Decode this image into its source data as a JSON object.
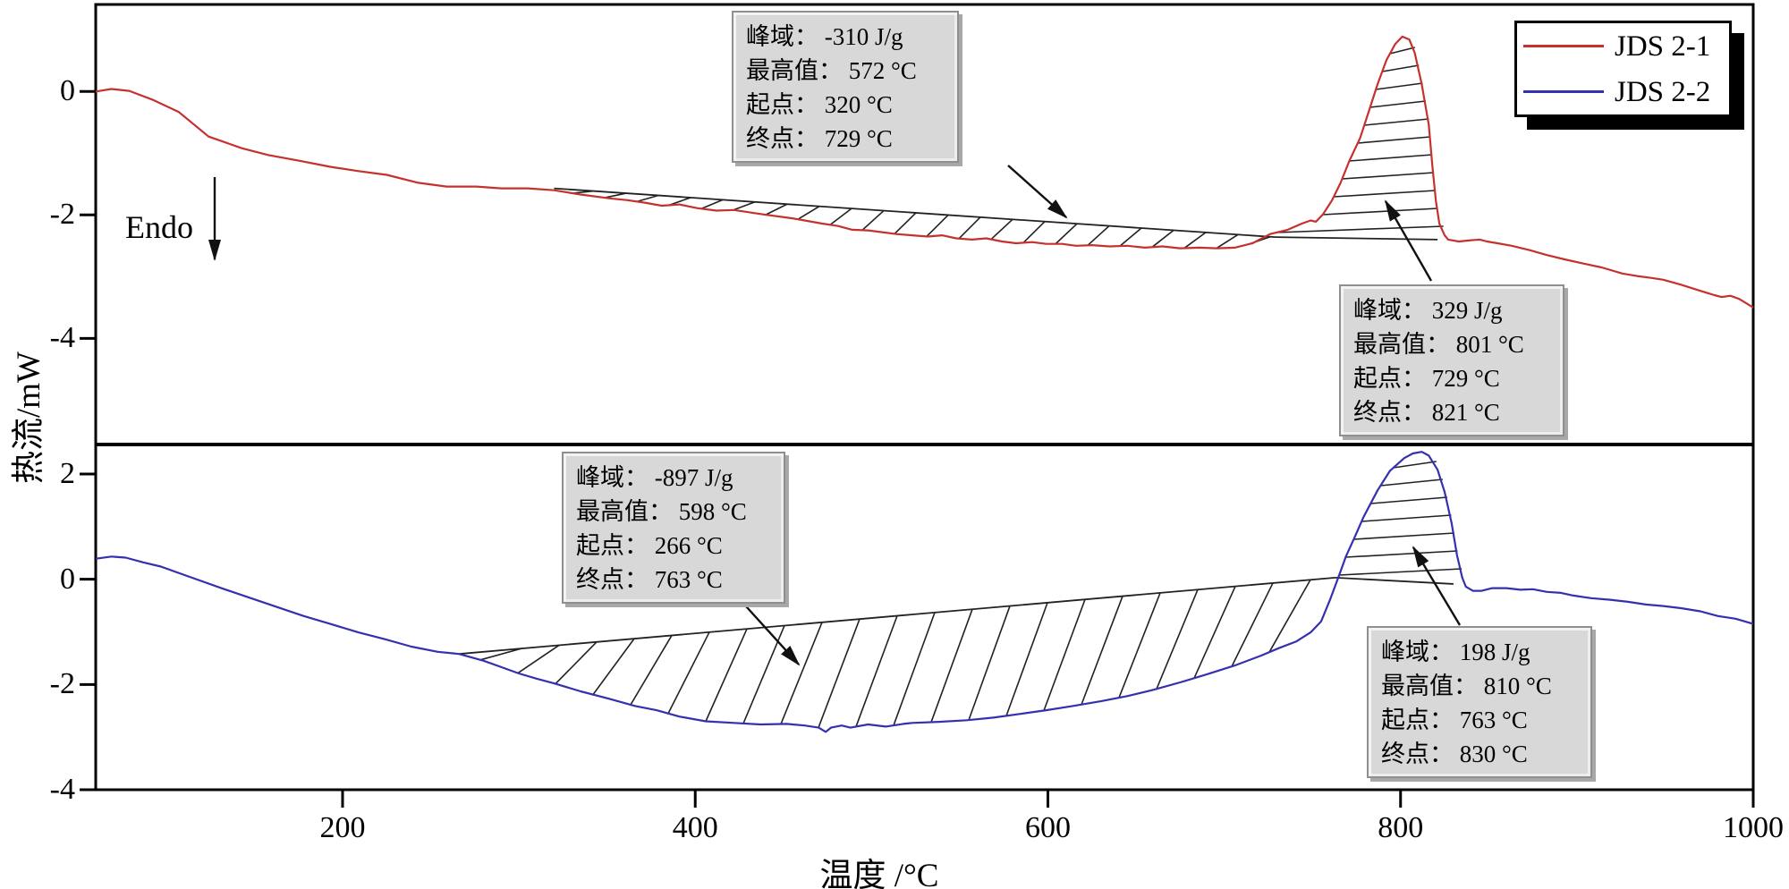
{
  "figure": {
    "bg": "#ffffff"
  },
  "axes": {
    "x": {
      "label": "温度 /°C",
      "ticks": [
        "200",
        "400",
        "600",
        "800",
        "1000"
      ],
      "range": [
        60,
        1000
      ]
    },
    "y": {
      "label": "热流/mW"
    },
    "panel_top": {
      "ticks": [
        "0",
        "-2",
        "-4"
      ],
      "tick_values": [
        0,
        -2,
        -4
      ],
      "range": [
        -5.72,
        1.41
      ]
    },
    "panel_bottom": {
      "ticks": [
        "2",
        "0",
        "-2",
        "-4"
      ],
      "tick_values": [
        2,
        0,
        -2,
        -4
      ],
      "range": [
        -4,
        2.56
      ]
    }
  },
  "endo": {
    "label": "Endo"
  },
  "legend": {
    "entries": [
      {
        "label": "JDS 2-1",
        "color": "#c5322e"
      },
      {
        "label": "JDS 2-2",
        "color": "#3530ae"
      }
    ]
  },
  "annotation_boxes": [
    {
      "id": "top-trough",
      "lines": [
        "峰域： -310 J/g",
        "最高值： 572 °C",
        "起点： 320 °C",
        "终点： 729 °C"
      ]
    },
    {
      "id": "top-peak",
      "lines": [
        "峰域： 329 J/g",
        "最高值： 801 °C",
        "起点： 729 °C",
        "终点： 821 °C"
      ]
    },
    {
      "id": "bottom-trough",
      "lines": [
        "峰域： -897 J/g",
        "最高值： 598 °C",
        "起点： 266 °C",
        "终点： 763 °C"
      ]
    },
    {
      "id": "bottom-peak",
      "lines": [
        "峰域： 198 J/g",
        "最高值： 810 °C",
        "起点： 763 °C",
        "终点： 830 °C"
      ]
    }
  ],
  "chart_data": {
    "type": "line",
    "xlabel": "温度 /°C",
    "ylabel": "热流/mW",
    "xlim": [
      60,
      1000
    ],
    "xticks": [
      200,
      400,
      600,
      800,
      1000
    ],
    "panels": [
      {
        "name": "JDS 2-1",
        "color": "#c5322e",
        "ylim": [
          -5.72,
          1.41
        ],
        "yticks": [
          0,
          -2,
          -4
        ],
        "peaks": [
          {
            "area_J_per_g": -310,
            "max_C": 572,
            "onset_C": 320,
            "end_C": 729
          },
          {
            "area_J_per_g": 329,
            "max_C": 801,
            "onset_C": 729,
            "end_C": 821
          }
        ],
        "baseline_trough": [
          [
            320,
            -1.57
          ],
          [
            729,
            -2.36
          ]
        ],
        "baseline_peak": [
          [
            729,
            -2.36
          ],
          [
            821,
            -2.4
          ]
        ],
        "points": [
          [
            60,
            0
          ],
          [
            69,
            0.04
          ],
          [
            79,
            0.01
          ],
          [
            92,
            -0.13
          ],
          [
            107,
            -0.33
          ],
          [
            124,
            -0.73
          ],
          [
            143,
            -0.92
          ],
          [
            158,
            -1.03
          ],
          [
            175,
            -1.12
          ],
          [
            193,
            -1.22
          ],
          [
            209,
            -1.29
          ],
          [
            225,
            -1.35
          ],
          [
            243,
            -1.48
          ],
          [
            259,
            -1.54
          ],
          [
            276,
            -1.54
          ],
          [
            290,
            -1.57
          ],
          [
            305,
            -1.57
          ],
          [
            320,
            -1.6
          ],
          [
            335,
            -1.67
          ],
          [
            351,
            -1.73
          ],
          [
            361,
            -1.76
          ],
          [
            371,
            -1.8
          ],
          [
            381,
            -1.85
          ],
          [
            391,
            -1.83
          ],
          [
            401,
            -1.89
          ],
          [
            412,
            -1.93
          ],
          [
            422,
            -1.92
          ],
          [
            438,
            -1.99
          ],
          [
            456,
            -2.06
          ],
          [
            472,
            -2.14
          ],
          [
            481,
            -2.18
          ],
          [
            489,
            -2.24
          ],
          [
            498,
            -2.25
          ],
          [
            506,
            -2.28
          ],
          [
            514,
            -2.31
          ],
          [
            523,
            -2.33
          ],
          [
            532,
            -2.35
          ],
          [
            540,
            -2.33
          ],
          [
            548,
            -2.38
          ],
          [
            557,
            -2.4
          ],
          [
            565,
            -2.38
          ],
          [
            574,
            -2.43
          ],
          [
            582,
            -2.46
          ],
          [
            591,
            -2.44
          ],
          [
            599,
            -2.47
          ],
          [
            608,
            -2.47
          ],
          [
            616,
            -2.5
          ],
          [
            625,
            -2.49
          ],
          [
            635,
            -2.51
          ],
          [
            645,
            -2.5
          ],
          [
            655,
            -2.53
          ],
          [
            665,
            -2.51
          ],
          [
            675,
            -2.54
          ],
          [
            686,
            -2.53
          ],
          [
            696,
            -2.54
          ],
          [
            706,
            -2.53
          ],
          [
            716,
            -2.46
          ],
          [
            726,
            -2.31
          ],
          [
            736,
            -2.24
          ],
          [
            744,
            -2.14
          ],
          [
            749,
            -2.09
          ],
          [
            752,
            -2.11
          ],
          [
            756,
            -1.99
          ],
          [
            761,
            -1.77
          ],
          [
            766,
            -1.48
          ],
          [
            771,
            -1.12
          ],
          [
            777,
            -0.76
          ],
          [
            782,
            -0.32
          ],
          [
            787,
            0.12
          ],
          [
            792,
            0.51
          ],
          [
            797,
            0.77
          ],
          [
            801,
            0.89
          ],
          [
            805,
            0.84
          ],
          [
            808,
            0.63
          ],
          [
            812,
            0.12
          ],
          [
            816,
            -0.54
          ],
          [
            818,
            -1.19
          ],
          [
            820,
            -1.77
          ],
          [
            822,
            -2.14
          ],
          [
            825,
            -2.33
          ],
          [
            827,
            -2.4
          ],
          [
            833,
            -2.43
          ],
          [
            840,
            -2.41
          ],
          [
            845,
            -2.4
          ],
          [
            849,
            -2.43
          ],
          [
            855,
            -2.46
          ],
          [
            863,
            -2.5
          ],
          [
            873,
            -2.57
          ],
          [
            883,
            -2.65
          ],
          [
            893,
            -2.72
          ],
          [
            904,
            -2.79
          ],
          [
            914,
            -2.85
          ],
          [
            926,
            -2.95
          ],
          [
            934,
            -2.99
          ],
          [
            942,
            -3.02
          ],
          [
            949,
            -3.05
          ],
          [
            959,
            -3.13
          ],
          [
            970,
            -3.23
          ],
          [
            978,
            -3.3
          ],
          [
            982,
            -3.33
          ],
          [
            987,
            -3.31
          ],
          [
            992,
            -3.36
          ],
          [
            1000,
            -3.5
          ]
        ]
      },
      {
        "name": "JDS 2-2",
        "color": "#3530ae",
        "ylim": [
          -4,
          2.56
        ],
        "yticks": [
          2,
          0,
          -2,
          -4
        ],
        "peaks": [
          {
            "area_J_per_g": -897,
            "max_C": 598,
            "onset_C": 266,
            "end_C": 763
          },
          {
            "area_J_per_g": 198,
            "max_C": 810,
            "onset_C": 763,
            "end_C": 830
          }
        ],
        "baseline_trough": [
          [
            266,
            -1.42
          ],
          [
            763,
            0.03
          ]
        ],
        "baseline_peak": [
          [
            763,
            0.03
          ],
          [
            830,
            -0.09
          ]
        ],
        "points": [
          [
            60,
            0.39
          ],
          [
            69,
            0.43
          ],
          [
            77,
            0.41
          ],
          [
            87,
            0.32
          ],
          [
            97,
            0.24
          ],
          [
            107,
            0.12
          ],
          [
            117,
            0
          ],
          [
            133,
            -0.19
          ],
          [
            148,
            -0.36
          ],
          [
            163,
            -0.53
          ],
          [
            178,
            -0.7
          ],
          [
            193,
            -0.85
          ],
          [
            209,
            -1.01
          ],
          [
            224,
            -1.14
          ],
          [
            239,
            -1.28
          ],
          [
            254,
            -1.38
          ],
          [
            266,
            -1.42
          ],
          [
            280,
            -1.55
          ],
          [
            290,
            -1.67
          ],
          [
            300,
            -1.79
          ],
          [
            310,
            -1.89
          ],
          [
            320,
            -1.98
          ],
          [
            335,
            -2.13
          ],
          [
            351,
            -2.27
          ],
          [
            366,
            -2.41
          ],
          [
            378,
            -2.49
          ],
          [
            391,
            -2.61
          ],
          [
            406,
            -2.7
          ],
          [
            422,
            -2.73
          ],
          [
            437,
            -2.76
          ],
          [
            452,
            -2.75
          ],
          [
            462,
            -2.78
          ],
          [
            470,
            -2.82
          ],
          [
            474,
            -2.9
          ],
          [
            477,
            -2.82
          ],
          [
            483,
            -2.78
          ],
          [
            488,
            -2.82
          ],
          [
            498,
            -2.76
          ],
          [
            508,
            -2.8
          ],
          [
            518,
            -2.75
          ],
          [
            523,
            -2.73
          ],
          [
            538,
            -2.71
          ],
          [
            554,
            -2.68
          ],
          [
            569,
            -2.63
          ],
          [
            584,
            -2.56
          ],
          [
            599,
            -2.49
          ],
          [
            614,
            -2.41
          ],
          [
            630,
            -2.32
          ],
          [
            645,
            -2.22
          ],
          [
            660,
            -2.1
          ],
          [
            675,
            -1.96
          ],
          [
            690,
            -1.81
          ],
          [
            706,
            -1.64
          ],
          [
            721,
            -1.45
          ],
          [
            731,
            -1.31
          ],
          [
            741,
            -1.18
          ],
          [
            749,
            -1.01
          ],
          [
            755,
            -0.8
          ],
          [
            760,
            -0.39
          ],
          [
            763,
            -0.12
          ],
          [
            766,
            0.15
          ],
          [
            769,
            0.43
          ],
          [
            774,
            0.8
          ],
          [
            779,
            1.18
          ],
          [
            787,
            1.69
          ],
          [
            794,
            2.06
          ],
          [
            802,
            2.3
          ],
          [
            807,
            2.39
          ],
          [
            812,
            2.42
          ],
          [
            816,
            2.35
          ],
          [
            821,
            2.08
          ],
          [
            825,
            1.66
          ],
          [
            829,
            1.06
          ],
          [
            832,
            0.46
          ],
          [
            835,
            0.03
          ],
          [
            837,
            -0.14
          ],
          [
            841,
            -0.22
          ],
          [
            846,
            -0.22
          ],
          [
            852,
            -0.17
          ],
          [
            860,
            -0.17
          ],
          [
            868,
            -0.2
          ],
          [
            875,
            -0.19
          ],
          [
            883,
            -0.24
          ],
          [
            891,
            -0.26
          ],
          [
            898,
            -0.31
          ],
          [
            908,
            -0.36
          ],
          [
            919,
            -0.39
          ],
          [
            929,
            -0.43
          ],
          [
            939,
            -0.48
          ],
          [
            949,
            -0.51
          ],
          [
            959,
            -0.55
          ],
          [
            970,
            -0.61
          ],
          [
            980,
            -0.7
          ],
          [
            990,
            -0.75
          ],
          [
            1000,
            -0.85
          ]
        ]
      }
    ]
  }
}
